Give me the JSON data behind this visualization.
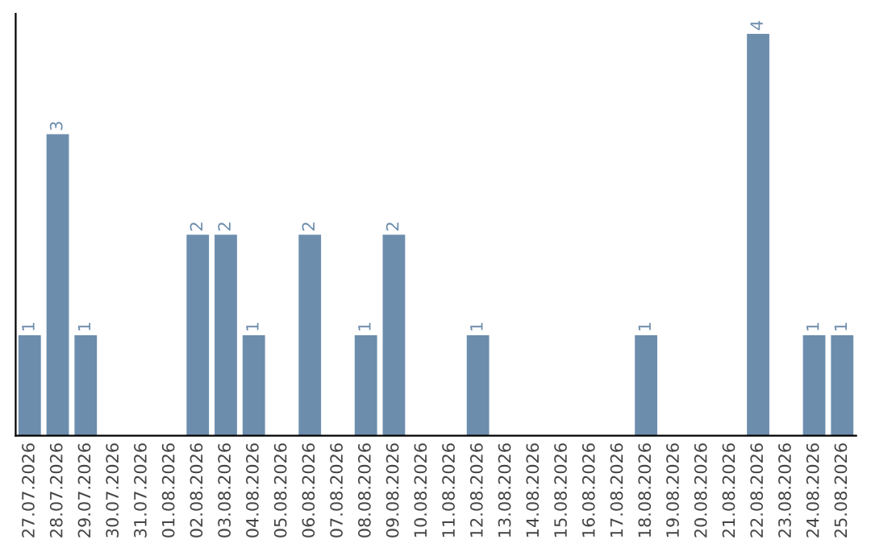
{
  "chart_data": {
    "type": "bar",
    "categories": [
      "27.07.2026",
      "28.07.2026",
      "29.07.2026",
      "30.07.2026",
      "31.07.2026",
      "01.08.2026",
      "02.08.2026",
      "03.08.2026",
      "04.08.2026",
      "05.08.2026",
      "06.08.2026",
      "07.08.2026",
      "08.08.2026",
      "09.08.2026",
      "10.08.2026",
      "11.08.2026",
      "12.08.2026",
      "13.08.2026",
      "14.08.2026",
      "15.08.2026",
      "16.08.2026",
      "17.08.2026",
      "18.08.2026",
      "19.08.2026",
      "20.08.2026",
      "21.08.2026",
      "22.08.2026",
      "23.08.2026",
      "24.08.2026",
      "25.08.2026"
    ],
    "values": [
      1,
      3,
      1,
      0,
      0,
      0,
      2,
      2,
      1,
      0,
      2,
      0,
      1,
      2,
      0,
      0,
      1,
      0,
      0,
      0,
      0,
      0,
      1,
      0,
      0,
      0,
      4,
      0,
      1,
      1
    ],
    "color": "#6d8dad",
    "ylim": [
      0,
      4.2
    ],
    "value_labels": [
      "1",
      "3",
      "1",
      null,
      null,
      null,
      "2",
      "2",
      "1",
      null,
      "2",
      null,
      "1",
      "2",
      null,
      null,
      "1",
      null,
      null,
      null,
      null,
      null,
      "1",
      null,
      null,
      null,
      "4",
      null,
      "1",
      "1"
    ],
    "tick_labels": "x",
    "grid": false,
    "legend": false
  }
}
